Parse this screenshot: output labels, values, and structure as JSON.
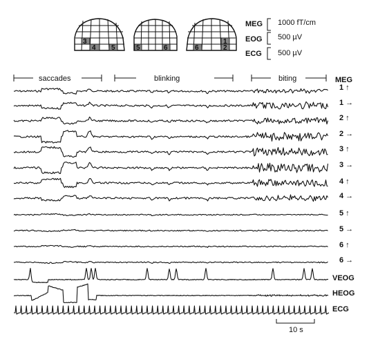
{
  "scale_bars": [
    {
      "name": "MEG",
      "value": "1000 fT/cm"
    },
    {
      "name": "EOG",
      "value": "500 µV"
    },
    {
      "name": "ECG",
      "value": "500 µV"
    }
  ],
  "helmets": [
    {
      "view": "left",
      "labels": [
        "3",
        "4",
        "5"
      ]
    },
    {
      "view": "back",
      "labels": [
        "5",
        "6"
      ]
    },
    {
      "view": "right",
      "labels": [
        "6",
        "1",
        "2"
      ]
    }
  ],
  "segments": [
    "saccades",
    "blinking",
    "biting"
  ],
  "meg_header": "MEG",
  "channels": [
    {
      "label": "1",
      "arrow": "↑"
    },
    {
      "label": "1",
      "arrow": "→"
    },
    {
      "label": "2",
      "arrow": "↑"
    },
    {
      "label": "2",
      "arrow": "→"
    },
    {
      "label": "3",
      "arrow": "↑"
    },
    {
      "label": "3",
      "arrow": "→"
    },
    {
      "label": "4",
      "arrow": "↑"
    },
    {
      "label": "4",
      "arrow": "→"
    },
    {
      "label": "5",
      "arrow": "↑"
    },
    {
      "label": "5",
      "arrow": "→"
    },
    {
      "label": "6",
      "arrow": "↑"
    },
    {
      "label": "6",
      "arrow": "→"
    },
    {
      "label": "VEOG",
      "arrow": ""
    },
    {
      "label": "HEOG",
      "arrow": ""
    },
    {
      "label": "ECG",
      "arrow": ""
    }
  ],
  "time_scale": "10 s"
}
